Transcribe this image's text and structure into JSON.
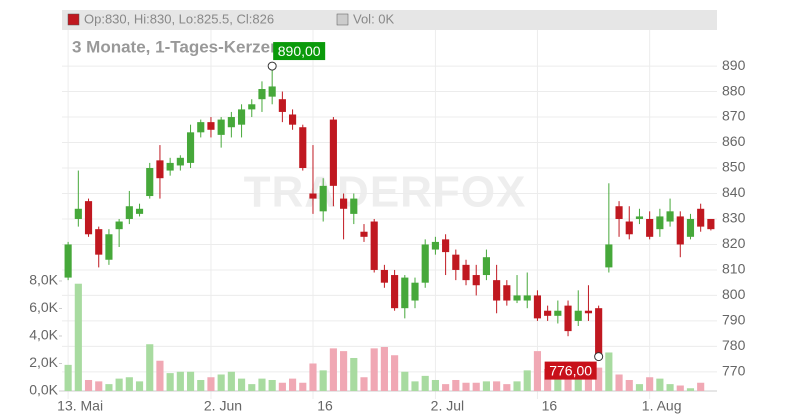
{
  "chart_data": {
    "type": "candlestick",
    "title": "3 Monate, 1-Tages-Kerzen",
    "watermark": "TRADERFOX",
    "legend": {
      "ohlc": "Op:830, Hi:830, Lo:825.5, Cl:826",
      "volume": "Vol: 0K"
    },
    "up_color": "#46a83a",
    "down_color": "#c01820",
    "up_volume_color": "#a8dba0",
    "down_volume_color": "#f0a8b4",
    "open": [
      807,
      830,
      837,
      826,
      814,
      826,
      830,
      832,
      839,
      853,
      849,
      851,
      852,
      864,
      868,
      863,
      866,
      867,
      873,
      877,
      878,
      877,
      871,
      866,
      840,
      833,
      869,
      838,
      832,
      825,
      829,
      810,
      808,
      795,
      798,
      805,
      818,
      822,
      816,
      812,
      808,
      808,
      806,
      804,
      798,
      798,
      800,
      794,
      792,
      796,
      790,
      794,
      795,
      811,
      835,
      829,
      830,
      830,
      826,
      829,
      831,
      823,
      834,
      830
    ],
    "high": [
      821,
      849,
      838,
      827,
      826,
      830,
      841,
      836,
      852,
      859,
      854,
      855,
      867,
      869,
      870,
      870,
      872,
      875,
      877,
      884,
      890,
      880,
      873,
      867,
      859,
      846,
      870,
      840,
      840,
      828,
      830,
      812,
      810,
      808,
      807,
      822,
      823,
      824,
      818,
      814,
      812,
      818,
      812,
      806,
      808,
      809,
      802,
      796,
      798,
      798,
      802,
      804,
      796,
      844,
      837,
      835,
      834,
      833,
      834,
      838,
      833,
      832,
      836,
      830
    ],
    "low": [
      806,
      827,
      823,
      811,
      812,
      819,
      828,
      831,
      838,
      838,
      847,
      849,
      850,
      862,
      862,
      858,
      862,
      862,
      870,
      872,
      875,
      868,
      865,
      849,
      832,
      829,
      835,
      822,
      828,
      821,
      809,
      803,
      794,
      791,
      795,
      803,
      816,
      808,
      806,
      804,
      800,
      806,
      793,
      796,
      797,
      795,
      790,
      790,
      789,
      784,
      788,
      790,
      776,
      809,
      823,
      822,
      828,
      822,
      823,
      827,
      815,
      822,
      825,
      825.5
    ],
    "close": [
      820,
      834,
      824,
      816,
      824,
      829,
      835,
      834,
      850,
      846,
      852,
      854,
      864,
      868,
      865,
      869,
      870,
      873,
      875,
      881,
      882,
      872,
      867,
      850,
      838,
      843,
      843,
      834,
      838,
      823,
      810,
      805,
      795,
      807,
      805,
      820,
      821,
      817,
      810,
      806,
      804,
      815,
      798,
      798,
      800,
      800,
      791,
      792,
      794,
      786,
      794,
      793,
      776,
      820,
      830,
      824,
      831,
      823,
      831,
      833,
      820,
      830,
      827,
      826
    ],
    "volume": [
      1900,
      7800,
      800,
      700,
      500,
      900,
      1000,
      700,
      3400,
      2200,
      1300,
      1400,
      1400,
      800,
      1000,
      1200,
      1400,
      900,
      500,
      900,
      800,
      600,
      900,
      600,
      2000,
      1500,
      3100,
      2900,
      2400,
      1000,
      3100,
      3200,
      2600,
      1400,
      700,
      1100,
      800,
      500,
      800,
      600,
      600,
      700,
      700,
      500,
      700,
      1500,
      2900,
      1600,
      1800,
      1600,
      1400,
      1400,
      1700,
      2800,
      1200,
      800,
      500,
      1000,
      900,
      500,
      400,
      200,
      600,
      0
    ],
    "xlim": [
      -0.6,
      63.6
    ],
    "xticks": [
      {
        "value": 0,
        "label": "13. Mai"
      },
      {
        "value": 14,
        "label": "2. Jun"
      },
      {
        "value": 24,
        "label": "16"
      },
      {
        "value": 36,
        "label": "2. Jul"
      },
      {
        "value": 46,
        "label": "16"
      },
      {
        "value": 57,
        "label": "1. Aug"
      }
    ],
    "ylim": [
      762.5,
      912
    ],
    "yticks": [
      770,
      780,
      790,
      800,
      810,
      820,
      830,
      840,
      850,
      860,
      870,
      880,
      890
    ],
    "y2lim": [
      0,
      27700
    ],
    "y2ticks": [
      {
        "value": 0,
        "label": "0,0K"
      },
      {
        "value": 2000,
        "label": "2,0K"
      },
      {
        "value": 4000,
        "label": "4,0K"
      },
      {
        "value": 6000,
        "label": "6,0K"
      },
      {
        "value": 8000,
        "label": "8,0K"
      }
    ],
    "grid": true,
    "annotations": [
      {
        "x": 20,
        "value": 890,
        "label": "890,00",
        "color": "#0a9a0a",
        "side": "right"
      },
      {
        "x": 52,
        "value": 776,
        "label": "776,00",
        "color": "#c8101a",
        "side": "left"
      }
    ]
  }
}
